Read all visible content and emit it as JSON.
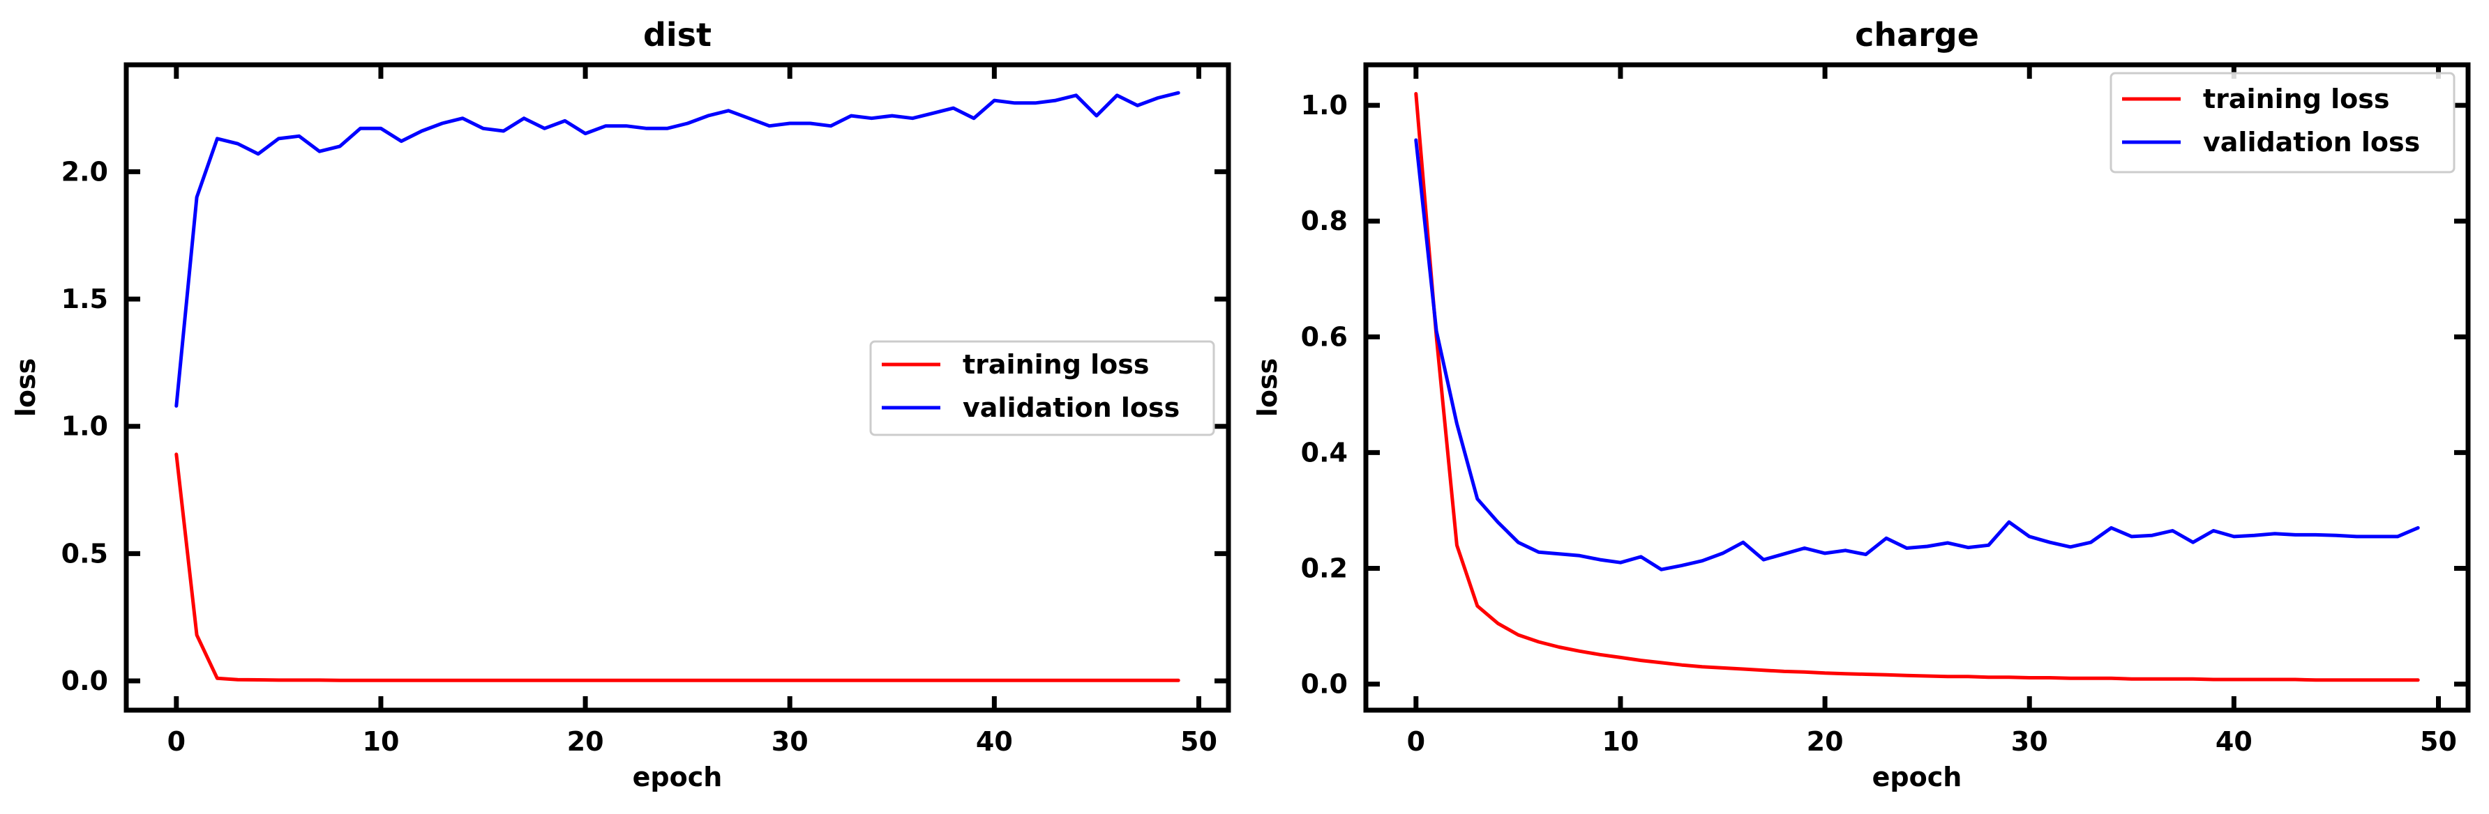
{
  "chart_data": [
    {
      "type": "line",
      "title": "dist",
      "xlabel": "epoch",
      "ylabel": "loss",
      "xlim": [
        -2.45,
        51.45
      ],
      "ylim": [
        -0.115,
        2.42
      ],
      "xticks": [
        0,
        10,
        20,
        30,
        40,
        50
      ],
      "xtick_labels": [
        "0",
        "10",
        "20",
        "30",
        "40",
        "50"
      ],
      "yticks": [
        0.0,
        0.5,
        1.0,
        1.5,
        2.0
      ],
      "ytick_labels": [
        "0.0",
        "0.5",
        "1.0",
        "1.5",
        "2.0"
      ],
      "legend_position": "center-right",
      "x": [
        0,
        1,
        2,
        3,
        4,
        5,
        6,
        7,
        8,
        9,
        10,
        11,
        12,
        13,
        14,
        15,
        16,
        17,
        18,
        19,
        20,
        21,
        22,
        23,
        24,
        25,
        26,
        27,
        28,
        29,
        30,
        31,
        32,
        33,
        34,
        35,
        36,
        37,
        38,
        39,
        40,
        41,
        42,
        43,
        44,
        45,
        46,
        47,
        48,
        49
      ],
      "series": [
        {
          "name": "training loss",
          "color": "#ff0000",
          "values": [
            0.89,
            0.18,
            0.01,
            0.005,
            0.004,
            0.003,
            0.003,
            0.003,
            0.002,
            0.002,
            0.002,
            0.002,
            0.002,
            0.002,
            0.002,
            0.002,
            0.002,
            0.002,
            0.002,
            0.002,
            0.002,
            0.002,
            0.002,
            0.002,
            0.002,
            0.002,
            0.002,
            0.002,
            0.002,
            0.002,
            0.002,
            0.002,
            0.002,
            0.002,
            0.002,
            0.002,
            0.002,
            0.002,
            0.002,
            0.002,
            0.002,
            0.002,
            0.002,
            0.002,
            0.002,
            0.002,
            0.002,
            0.002,
            0.002,
            0.002
          ]
        },
        {
          "name": "validation loss",
          "color": "#0000ff",
          "values": [
            1.08,
            1.9,
            2.13,
            2.11,
            2.07,
            2.13,
            2.14,
            2.08,
            2.1,
            2.17,
            2.17,
            2.12,
            2.16,
            2.19,
            2.21,
            2.17,
            2.16,
            2.21,
            2.17,
            2.2,
            2.15,
            2.18,
            2.18,
            2.17,
            2.17,
            2.19,
            2.22,
            2.24,
            2.21,
            2.18,
            2.19,
            2.19,
            2.18,
            2.22,
            2.21,
            2.22,
            2.21,
            2.23,
            2.25,
            2.21,
            2.28,
            2.27,
            2.27,
            2.28,
            2.3,
            2.22,
            2.3,
            2.26,
            2.29,
            2.31
          ]
        }
      ]
    },
    {
      "type": "line",
      "title": "charge",
      "xlabel": "epoch",
      "ylabel": "loss",
      "xlim": [
        -2.45,
        51.45
      ],
      "ylim": [
        -0.045,
        1.07
      ],
      "xticks": [
        0,
        10,
        20,
        30,
        40,
        50
      ],
      "xtick_labels": [
        "0",
        "10",
        "20",
        "30",
        "40",
        "50"
      ],
      "yticks": [
        0.0,
        0.2,
        0.4,
        0.6,
        0.8,
        1.0
      ],
      "ytick_labels": [
        "0.0",
        "0.2",
        "0.4",
        "0.6",
        "0.8",
        "1.0"
      ],
      "legend_position": "upper-right",
      "x": [
        0,
        1,
        2,
        3,
        4,
        5,
        6,
        7,
        8,
        9,
        10,
        11,
        12,
        13,
        14,
        15,
        16,
        17,
        18,
        19,
        20,
        21,
        22,
        23,
        24,
        25,
        26,
        27,
        28,
        29,
        30,
        31,
        32,
        33,
        34,
        35,
        36,
        37,
        38,
        39,
        40,
        41,
        42,
        43,
        44,
        45,
        46,
        47,
        48,
        49
      ],
      "series": [
        {
          "name": "training loss",
          "color": "#ff0000",
          "values": [
            1.02,
            0.6,
            0.24,
            0.135,
            0.105,
            0.085,
            0.073,
            0.064,
            0.057,
            0.051,
            0.046,
            0.041,
            0.037,
            0.033,
            0.03,
            0.028,
            0.026,
            0.024,
            0.022,
            0.021,
            0.019,
            0.018,
            0.017,
            0.016,
            0.015,
            0.014,
            0.013,
            0.013,
            0.012,
            0.012,
            0.011,
            0.011,
            0.01,
            0.01,
            0.01,
            0.009,
            0.009,
            0.009,
            0.009,
            0.008,
            0.008,
            0.008,
            0.008,
            0.008,
            0.007,
            0.007,
            0.007,
            0.007,
            0.007,
            0.007
          ]
        },
        {
          "name": "validation loss",
          "color": "#0000ff",
          "values": [
            0.94,
            0.61,
            0.45,
            0.32,
            0.28,
            0.245,
            0.228,
            0.225,
            0.222,
            0.215,
            0.21,
            0.22,
            0.198,
            0.205,
            0.213,
            0.226,
            0.245,
            0.215,
            0.225,
            0.235,
            0.226,
            0.231,
            0.224,
            0.252,
            0.235,
            0.238,
            0.244,
            0.236,
            0.24,
            0.28,
            0.255,
            0.245,
            0.237,
            0.245,
            0.27,
            0.255,
            0.257,
            0.265,
            0.245,
            0.265,
            0.255,
            0.257,
            0.26,
            0.258,
            0.258,
            0.257,
            0.255,
            0.255,
            0.255,
            0.27
          ]
        }
      ]
    }
  ]
}
